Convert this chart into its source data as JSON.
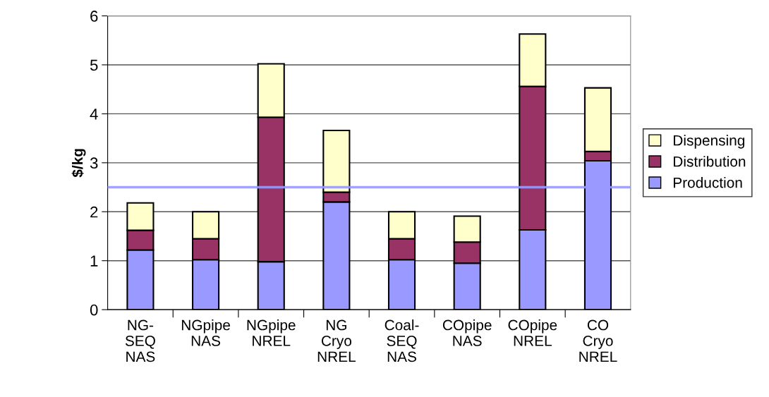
{
  "chart_data": {
    "type": "bar",
    "stacked": true,
    "ylabel": "$/kg",
    "categories": [
      "NG-\nSEQ\nNAS",
      "NGpipe\nNAS",
      "NGpipe\nNREL",
      "NG\nCryo\nNREL",
      "Coal-\nSEQ\nNAS",
      "COpipe\nNAS",
      "COpipe\nNREL",
      "CO\nCryo\nNREL"
    ],
    "series": [
      {
        "name": "Production",
        "color": "#9999ff",
        "values": [
          1.22,
          1.02,
          0.98,
          2.2,
          1.02,
          0.95,
          1.63,
          3.04
        ]
      },
      {
        "name": "Distribution",
        "color": "#993366",
        "values": [
          0.4,
          0.43,
          2.95,
          0.2,
          0.43,
          0.43,
          2.93,
          0.19
        ]
      },
      {
        "name": "Dispensing",
        "color": "#ffffcc",
        "values": [
          0.56,
          0.55,
          1.09,
          1.26,
          0.55,
          0.53,
          1.07,
          1.3
        ]
      }
    ],
    "ylim": [
      0,
      6
    ],
    "yticks": [
      0,
      1,
      2,
      3,
      4,
      5,
      6
    ],
    "grid": "y",
    "legend": "right",
    "ref_lines": [
      {
        "axis": "y",
        "value": 2.5,
        "color": "#9999ff",
        "line_style": "solid"
      }
    ]
  }
}
